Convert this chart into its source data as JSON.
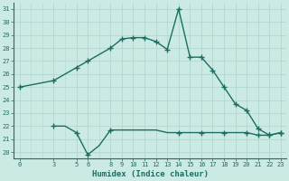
{
  "xlabel": "Humidex (Indice chaleur)",
  "xlim": [
    -0.5,
    23.5
  ],
  "ylim": [
    19.5,
    31.5
  ],
  "yticks": [
    20,
    21,
    22,
    23,
    24,
    25,
    26,
    27,
    28,
    29,
    30,
    31
  ],
  "xticks": [
    0,
    3,
    5,
    6,
    8,
    9,
    10,
    11,
    12,
    13,
    14,
    15,
    16,
    17,
    18,
    19,
    20,
    21,
    22,
    23
  ],
  "bg_color": "#cceae4",
  "line_color": "#1a6e62",
  "grid_color": "#b0d8d0",
  "line1_x": [
    0,
    3,
    5,
    6,
    7,
    8,
    9,
    10,
    11,
    12,
    13,
    14,
    15,
    16,
    17,
    18,
    19,
    20,
    21,
    22,
    23
  ],
  "line1_y": [
    25.0,
    25.5,
    26.5,
    27.0,
    27.5,
    28.0,
    28.7,
    28.8,
    28.8,
    28.5,
    27.9,
    31.0,
    27.3,
    27.3,
    26.3,
    25.0,
    23.7,
    23.2,
    21.8,
    21.3,
    21.5
  ],
  "line2_x": [
    3,
    4,
    5,
    6,
    7,
    8,
    9,
    10,
    11,
    12,
    13,
    14,
    15,
    16,
    17,
    18,
    19,
    20,
    21,
    22,
    23
  ],
  "line2_y": [
    22.0,
    22.0,
    21.5,
    19.8,
    20.5,
    21.7,
    21.7,
    21.7,
    21.7,
    21.7,
    21.5,
    21.5,
    21.5,
    21.5,
    21.5,
    21.5,
    21.5,
    21.5,
    21.3,
    21.3,
    21.5
  ],
  "marker_x1": [
    0,
    3,
    5,
    6,
    8,
    9,
    10,
    11,
    12,
    13,
    14,
    15,
    16,
    17,
    18,
    19,
    20,
    21,
    22,
    23
  ],
  "marker_y1": [
    25.0,
    25.5,
    26.5,
    27.0,
    28.0,
    28.7,
    28.8,
    28.8,
    28.5,
    27.9,
    31.0,
    27.3,
    27.3,
    26.3,
    25.0,
    23.7,
    23.2,
    21.8,
    21.3,
    21.5
  ],
  "marker_x2": [
    3,
    5,
    6,
    8,
    14,
    16,
    18,
    20,
    21,
    22,
    23
  ],
  "marker_y2": [
    22.0,
    21.5,
    19.8,
    21.7,
    21.5,
    21.5,
    21.5,
    21.5,
    21.3,
    21.3,
    21.5
  ]
}
